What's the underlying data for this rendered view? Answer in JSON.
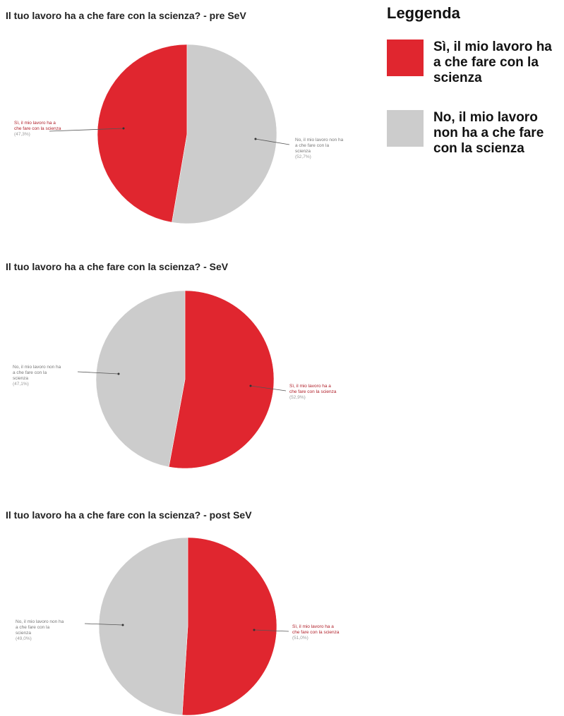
{
  "legend": {
    "title": "Leggenda",
    "items": [
      {
        "label": "Sì, il mio lavoro ha a che fare con la scienza",
        "color": "#e0262f"
      },
      {
        "label": "No, il mio lavoro non ha a che fare con la scienza",
        "color": "#cccccc"
      }
    ]
  },
  "chart_data": [
    {
      "type": "pie",
      "title": "Il tuo lavoro ha a che fare con la scienza? - pre SeV",
      "slices": [
        {
          "label": "Sì, il mio lavoro ha a che fare con la scienza",
          "value": 47.3,
          "value_label": "(47,3%)",
          "color": "#e0262f"
        },
        {
          "label": "No, il mio lavoro non ha a che fare con la scienza",
          "value": 52.7,
          "value_label": "(52,7%)",
          "color": "#cccccc"
        }
      ]
    },
    {
      "type": "pie",
      "title": "Il tuo lavoro ha a che fare con la scienza? - SeV",
      "slices": [
        {
          "label": "Sì, il mio lavoro ha a che fare con la scienza",
          "value": 52.9,
          "value_label": "(52,9%)",
          "color": "#e0262f"
        },
        {
          "label": "No, il mio lavoro non ha a che fare con la scienza",
          "value": 47.1,
          "value_label": "(47,1%)",
          "color": "#cccccc"
        }
      ]
    },
    {
      "type": "pie",
      "title": "Il tuo lavoro ha a che fare con la scienza? - post SeV",
      "slices": [
        {
          "label": "Sì, il mio lavoro ha a che fare con la scienza",
          "value": 51.0,
          "value_label": "(51,0%)",
          "color": "#e0262f"
        },
        {
          "label": "No, il mio lavoro non ha a che fare con la scienza",
          "value": 49.0,
          "value_label": "(49,0%)",
          "color": "#cccccc"
        }
      ]
    }
  ]
}
